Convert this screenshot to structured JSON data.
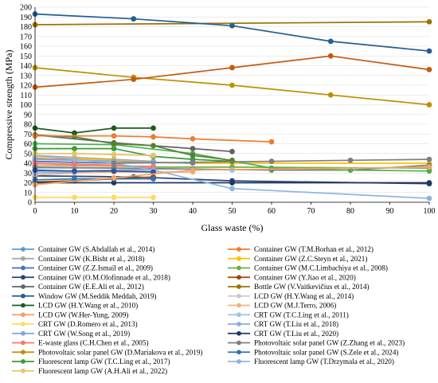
{
  "chart_data": {
    "type": "line",
    "title": "",
    "xlabel": "Glass waste (%)",
    "ylabel": "Compressive strength (MPa)",
    "xlim": [
      0,
      100
    ],
    "ylim": [
      0,
      200
    ],
    "xticks": [
      0,
      10,
      20,
      30,
      40,
      50,
      60,
      70,
      80,
      90,
      100
    ],
    "yticks": [
      0,
      10,
      20,
      30,
      40,
      50,
      60,
      70,
      80,
      90,
      100,
      110,
      120,
      130,
      140,
      150,
      160,
      170,
      180,
      190,
      200
    ],
    "grid": "horizontal",
    "legend_position": "bottom",
    "series": [
      {
        "name": "Container GW (S.Abdallah et al., 2014)",
        "color": "#5b9bd5",
        "points": [
          [
            0,
            32
          ],
          [
            10,
            32
          ],
          [
            20,
            33
          ],
          [
            30,
            33
          ]
        ]
      },
      {
        "name": "Container GW (T.M.Borhan et al., 2012)",
        "color": "#ed7d31",
        "points": [
          [
            0,
            45
          ],
          [
            20,
            42
          ],
          [
            40,
            40
          ]
        ]
      },
      {
        "name": "Container GW (K.Bisht et al., 2018)",
        "color": "#a5a5a5",
        "points": [
          [
            0,
            48
          ],
          [
            10,
            46
          ],
          [
            20,
            44
          ],
          [
            30,
            42
          ]
        ]
      },
      {
        "name": "Container GW (Z.C.Steyn et al., 2021)",
        "color": "#ffc000",
        "points": [
          [
            0,
            47
          ],
          [
            10,
            45
          ],
          [
            20,
            43
          ],
          [
            30,
            41
          ],
          [
            40,
            40
          ],
          [
            50,
            40
          ],
          [
            100,
            40
          ]
        ]
      },
      {
        "name": "Container GW (Z.Z.Ismail et al., 2009)",
        "color": "#4472c4",
        "points": [
          [
            0,
            42
          ],
          [
            10,
            41
          ],
          [
            20,
            40
          ]
        ]
      },
      {
        "name": "Container GW (M.C.Limbachiya et al., 2008)",
        "color": "#70ad47",
        "points": [
          [
            0,
            38
          ],
          [
            20,
            37
          ],
          [
            30,
            36
          ],
          [
            50,
            36
          ],
          [
            100,
            35
          ]
        ]
      },
      {
        "name": "Container GW (O.M.Olofinnade et al., 2018)",
        "color": "#264478",
        "points": [
          [
            0,
            27
          ],
          [
            25,
            26
          ],
          [
            50,
            22
          ],
          [
            100,
            19
          ]
        ]
      },
      {
        "name": "Container GW (Y.Jiao et al., 2020)",
        "color": "#9e480e",
        "points": [
          [
            0,
            21
          ],
          [
            10,
            22
          ],
          [
            20,
            24
          ],
          [
            30,
            26
          ]
        ]
      },
      {
        "name": "Container GW (E.E.Ali et al., 2012)",
        "color": "#636363",
        "points": [
          [
            0,
            69
          ],
          [
            20,
            61
          ],
          [
            40,
            55
          ],
          [
            50,
            52
          ]
        ]
      },
      {
        "name": "Bottle GW (V.Vaitkevičius et al., 2014)",
        "color": "#997300",
        "points": [
          [
            0,
            182
          ],
          [
            100,
            185
          ]
        ]
      },
      {
        "name": "Window GW (M.Seddik Meddah, 2019)",
        "color": "#255e91",
        "points": [
          [
            0,
            193
          ],
          [
            25,
            188
          ],
          [
            50,
            181
          ],
          [
            75,
            165
          ],
          [
            100,
            155
          ]
        ]
      },
      {
        "name": "LCD GW (H.Y.Wang et al., 2014)",
        "color": "#c9c9c9",
        "points": [
          [
            0,
            50
          ],
          [
            10,
            50
          ],
          [
            20,
            49
          ],
          [
            30,
            48
          ]
        ]
      },
      {
        "name": "LCD GW (H.Y.Wang et al., 2010)",
        "color": "#1e5b1e",
        "points": [
          [
            0,
            76
          ],
          [
            10,
            71
          ],
          [
            20,
            76
          ],
          [
            30,
            76
          ]
        ]
      },
      {
        "name": "LCD GW (M.J.Terro, 2006)",
        "color": "#f4b183",
        "points": [
          [
            0,
            28
          ],
          [
            10,
            30
          ],
          [
            20,
            31
          ],
          [
            30,
            31
          ],
          [
            40,
            31
          ]
        ]
      },
      {
        "name": "LCD GW (W.Her-Yung, 2009)",
        "color": "#f0a060",
        "points": [
          [
            0,
            38
          ],
          [
            10,
            38
          ],
          [
            20,
            37
          ],
          [
            30,
            37
          ]
        ]
      },
      {
        "name": "CRT GW (T.C.Ling et al., 2011)",
        "color": "#9dc3e6",
        "points": [
          [
            0,
            35
          ],
          [
            10,
            35
          ],
          [
            20,
            35
          ],
          [
            30,
            34
          ],
          [
            40,
            34
          ],
          [
            50,
            33
          ]
        ]
      },
      {
        "name": "CRT GW (D.Romero et al., 2013)",
        "color": "#ffd966",
        "points": [
          [
            0,
            5
          ],
          [
            10,
            5
          ],
          [
            20,
            5
          ],
          [
            30,
            5
          ]
        ]
      },
      {
        "name": "CRT GW (T.Liu et al., 2018)",
        "color": "#8faadc",
        "points": [
          [
            0,
            30
          ],
          [
            10,
            31
          ],
          [
            20,
            33
          ],
          [
            30,
            33
          ]
        ]
      },
      {
        "name": "CRT GW (W.Song et al., 2019)",
        "color": "#7aa6d8",
        "points": [
          [
            0,
            44
          ],
          [
            10,
            43
          ],
          [
            20,
            42
          ],
          [
            30,
            41
          ],
          [
            40,
            40
          ]
        ]
      },
      {
        "name": "CRT GW (T.Liu et al., 2020)",
        "color": "#203864",
        "points": [
          [
            0,
            20
          ],
          [
            20,
            20
          ],
          [
            50,
            20
          ],
          [
            100,
            20
          ]
        ]
      },
      {
        "name": "E-waste glass (C.H.Chen et al., 2005)",
        "color": "#f8766d",
        "points": [
          [
            0,
            40
          ],
          [
            10,
            39
          ],
          [
            20,
            38
          ],
          [
            30,
            36
          ]
        ]
      },
      {
        "name": "Photovoltaic solar panel GW (Z.Zhang et al., 2023)",
        "color": "#7f7f7f",
        "points": [
          [
            0,
            36
          ],
          [
            20,
            35
          ],
          [
            40,
            34
          ],
          [
            60,
            33
          ],
          [
            80,
            33
          ],
          [
            100,
            38
          ]
        ]
      },
      {
        "name": "Photovoltaic solar panel GW (D.Mariakova et al., 2019)",
        "color": "#bf9000",
        "points": [
          [
            0,
            138
          ],
          [
            25,
            128
          ],
          [
            50,
            120
          ],
          [
            75,
            110
          ],
          [
            100,
            100
          ]
        ]
      },
      {
        "name": "Photovoltaic solar panel GW (S.Zele et al., 2024)",
        "color": "#2e75b6",
        "points": [
          [
            0,
            23
          ],
          [
            10,
            24
          ],
          [
            20,
            24
          ],
          [
            30,
            24
          ]
        ]
      },
      {
        "name": "Fluorescent lamp GW (T.C.Ling et al., 2017)",
        "color": "#3a9b3a",
        "points": [
          [
            0,
            55
          ],
          [
            10,
            55
          ],
          [
            20,
            55
          ],
          [
            30,
            47
          ],
          [
            40,
            44
          ],
          [
            50,
            42
          ]
        ]
      },
      {
        "name": "Fluorescent lamp GW (T.Drzymala et al., 2020)",
        "color": "#8eb4e3",
        "points": [
          [
            0,
            48
          ],
          [
            10,
            44
          ],
          [
            20,
            40
          ],
          [
            30,
            33
          ],
          [
            50,
            14
          ],
          [
            100,
            4
          ]
        ]
      },
      {
        "name": "Fluorescent lamp GW (A.H.Ali et al., 2022)",
        "color": "#e8c468",
        "points": [
          [
            0,
            50
          ],
          [
            10,
            50
          ],
          [
            20,
            49
          ],
          [
            30,
            48
          ]
        ]
      },
      {
        "name": "",
        "color": "#c55a11",
        "points": [
          [
            0,
            118
          ],
          [
            25,
            126
          ],
          [
            50,
            138
          ],
          [
            75,
            150
          ],
          [
            100,
            136
          ]
        ]
      },
      {
        "name": "",
        "color": "#4caf50",
        "points": [
          [
            0,
            60
          ],
          [
            20,
            59
          ],
          [
            40,
            50
          ],
          [
            60,
            35
          ],
          [
            80,
            33
          ],
          [
            100,
            32
          ]
        ]
      },
      {
        "name": "",
        "color": "#548235",
        "points": [
          [
            0,
            69
          ],
          [
            10,
            67
          ],
          [
            20,
            60
          ],
          [
            30,
            58
          ],
          [
            40,
            48
          ],
          [
            50,
            43
          ]
        ]
      },
      {
        "name": "",
        "color": "#ed7d31",
        "points": [
          [
            0,
            68
          ],
          [
            20,
            68
          ],
          [
            30,
            67
          ],
          [
            40,
            65
          ],
          [
            60,
            62
          ]
        ]
      },
      {
        "name": "",
        "color": "#2f5597",
        "points": [
          [
            0,
            33
          ],
          [
            10,
            32
          ],
          [
            20,
            32
          ],
          [
            30,
            31
          ]
        ]
      },
      {
        "name": "",
        "color": "#f4a460",
        "points": [
          [
            0,
            18
          ],
          [
            20,
            25
          ],
          [
            40,
            33
          ],
          [
            100,
            36
          ]
        ]
      },
      {
        "name": "",
        "color": "#7f7f7f",
        "points": [
          [
            20,
            40
          ],
          [
            40,
            41
          ],
          [
            60,
            42
          ],
          [
            80,
            43
          ],
          [
            100,
            44
          ]
        ]
      }
    ]
  }
}
